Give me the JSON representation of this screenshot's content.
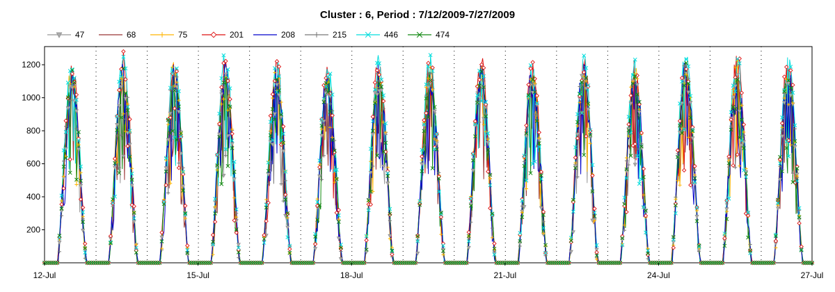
{
  "chart_data": {
    "type": "line",
    "title": "Cluster : 6, Period : 7/12/2009-7/27/2009",
    "xlabel": "",
    "ylabel": "",
    "x_ticks": [
      "12-Jul",
      "15-Jul",
      "18-Jul",
      "21-Jul",
      "24-Jul",
      "27-Jul"
    ],
    "x_range_days": [
      12,
      27
    ],
    "ylim": [
      0,
      1310
    ],
    "y_ticks": [
      200,
      400,
      600,
      800,
      1000,
      1200
    ],
    "grid": "vertical dotted lines",
    "legend_position": "top",
    "daily_peak_approx": {
      "dates": [
        "7/12",
        "7/13",
        "7/14",
        "7/15",
        "7/16",
        "7/17",
        "7/18",
        "7/19",
        "7/20",
        "7/21",
        "7/22",
        "7/23",
        "7/24",
        "7/25",
        "7/26"
      ],
      "values": [
        1230,
        1260,
        1250,
        1250,
        1220,
        1200,
        1250,
        1240,
        1250,
        1240,
        1260,
        1240,
        1280,
        1270,
        1260
      ]
    },
    "series": [
      {
        "name": "47",
        "color": "#999999",
        "marker": "triangle-down"
      },
      {
        "name": "68",
        "color": "#993333",
        "marker": "none"
      },
      {
        "name": "75",
        "color": "#ffb400",
        "marker": "plus"
      },
      {
        "name": "201",
        "color": "#dd1111",
        "marker": "diamond"
      },
      {
        "name": "208",
        "color": "#0000cc",
        "marker": "none"
      },
      {
        "name": "215",
        "color": "#777777",
        "marker": "plus"
      },
      {
        "name": "446",
        "color": "#00dddd",
        "marker": "x"
      },
      {
        "name": "474",
        "color": "#118811",
        "marker": "x"
      }
    ]
  }
}
